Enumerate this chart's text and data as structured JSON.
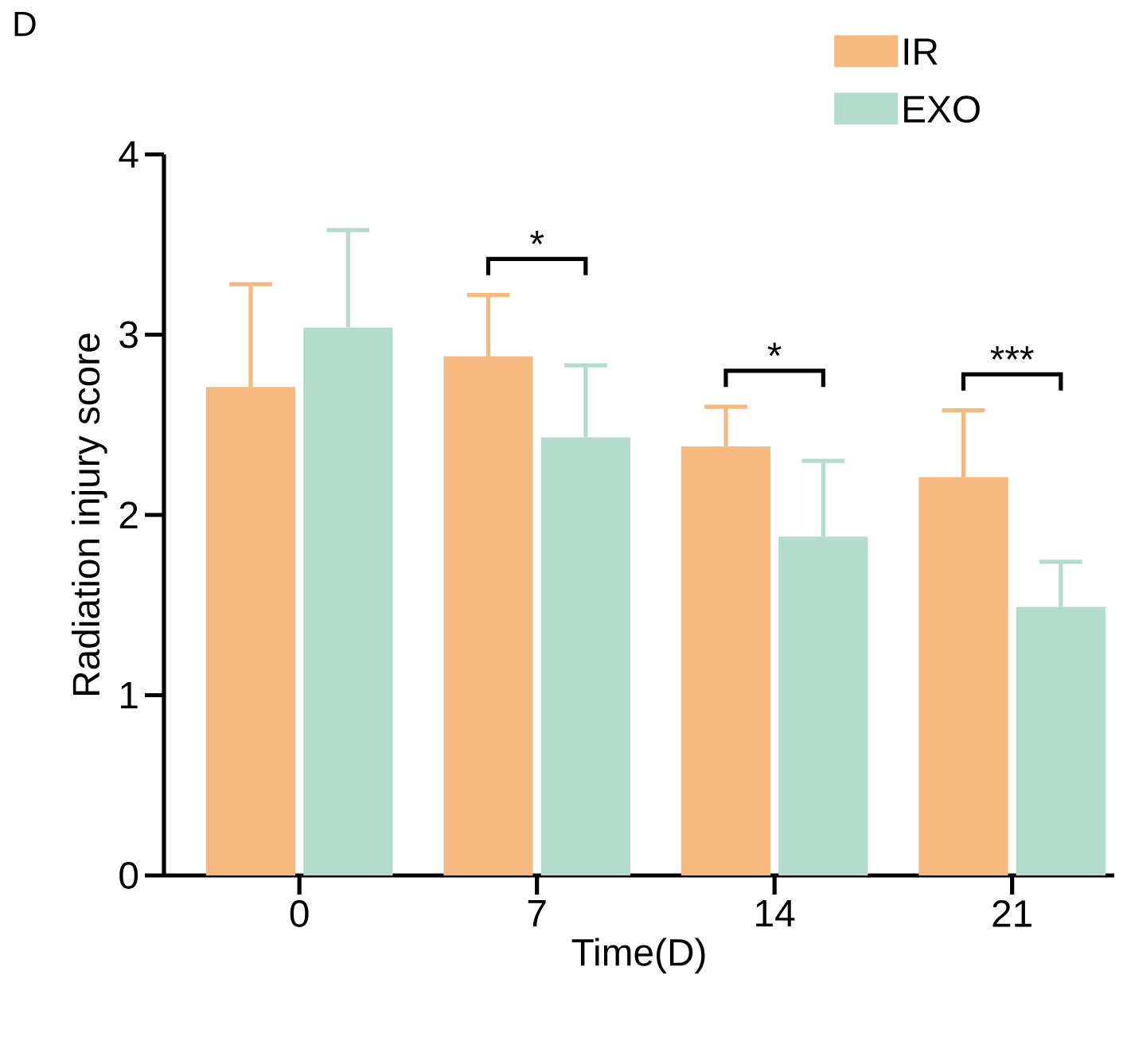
{
  "chart_data": {
    "type": "bar",
    "xlabel": "Time(D)",
    "ylabel": "Radiation injury score",
    "categories": [
      "0",
      "7",
      "14",
      "21"
    ],
    "series": [
      {
        "name": "IR",
        "color": "#f5b97f",
        "values": [
          2.71,
          2.88,
          2.38,
          2.21
        ],
        "errors": [
          [
            2.71,
            3.28
          ],
          [
            2.88,
            3.22
          ],
          [
            2.38,
            2.6
          ],
          [
            2.21,
            2.58
          ]
        ]
      },
      {
        "name": "EXO",
        "color": "#b3dccd",
        "values": [
          3.04,
          2.43,
          1.88,
          1.49
        ],
        "errors": [
          [
            3.04,
            3.58
          ],
          [
            2.43,
            2.83
          ],
          [
            1.88,
            2.3
          ],
          [
            1.49,
            1.74
          ]
        ]
      }
    ],
    "ylim": [
      0,
      4
    ],
    "yticks": [
      0,
      1,
      2,
      3,
      4
    ],
    "legend": "top right",
    "annotations": [
      "D",
      "*",
      "*",
      "***"
    ]
  }
}
